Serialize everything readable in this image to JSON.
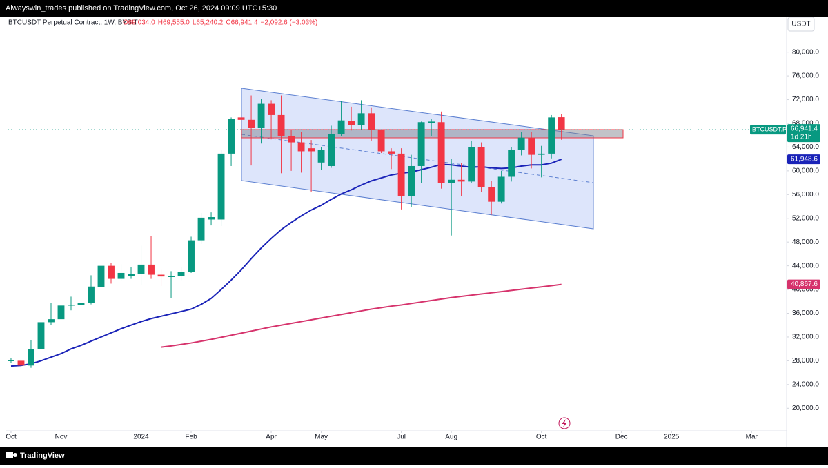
{
  "header": "Alwayswin_trades published on TradingView.com, Oct 26, 2024 09:09 UTC+5:30",
  "footer": "TradingView",
  "chart_data": {
    "type": "candlestick",
    "title": "BTCUSDT Perpetual Contract, 1W, BYBIT",
    "legend_values": [
      "O69,034.0",
      "H69,555.0",
      "L65,240.2",
      "C66,941.4",
      "−2,092.6 (−3.03%)"
    ],
    "currency": "USDT",
    "symbol": "BTCUSDT.P",
    "countdown": "1d 21h",
    "last_close_label": "66,941.4",
    "up_color": "#089981",
    "down_color": "#f23645",
    "open": [
      27950,
      28000,
      27200,
      30000,
      34500,
      35000,
      37300,
      37400,
      37800,
      40400,
      44000,
      41800,
      42300,
      42600,
      44200,
      42500,
      42100,
      42300,
      43000,
      48300,
      51800,
      51800,
      62900,
      69000,
      68600,
      67300,
      71300,
      69400,
      65800,
      64800,
      63800,
      61400,
      60800,
      66200,
      68400,
      67700,
      69700,
      66900,
      63300,
      62900,
      55700,
      60800,
      68100,
      68200,
      58000,
      58500,
      58200,
      64000,
      57200,
      54800,
      59000,
      63500,
      65600,
      62700,
      62900,
      69034
    ],
    "high": [
      28400,
      28300,
      31500,
      35800,
      37800,
      38400,
      38800,
      39000,
      42400,
      44800,
      44500,
      44300,
      43800,
      47400,
      49000,
      43300,
      43100,
      43800,
      48900,
      52900,
      53000,
      63600,
      69000,
      70000,
      72700,
      72100,
      71900,
      72700,
      67000,
      66500,
      65200,
      64000,
      67600,
      71800,
      70800,
      71900,
      70700,
      67000,
      63800,
      63800,
      62700,
      68300,
      68800,
      70000,
      62000,
      61300,
      65100,
      64800,
      58300,
      60000,
      64000,
      66500,
      66500,
      64200,
      69400,
      69555
    ],
    "low": [
      27700,
      26600,
      26800,
      29800,
      34000,
      34800,
      36500,
      36300,
      37500,
      40000,
      41000,
      41500,
      41800,
      40700,
      41800,
      40600,
      38600,
      41600,
      42800,
      47700,
      50800,
      50700,
      60800,
      62300,
      60900,
      64600,
      65300,
      59600,
      60000,
      59700,
      56500,
      60200,
      60500,
      65800,
      66800,
      66900,
      65000,
      63000,
      60300,
      53500,
      53900,
      58000,
      65900,
      57000,
      49100,
      55700,
      57900,
      56500,
      52600,
      54500,
      58200,
      62600,
      60400,
      58900,
      62100,
      65240.2
    ],
    "close": [
      28050,
      27200,
      30000,
      34500,
      35000,
      37300,
      37400,
      37800,
      40500,
      44000,
      41800,
      42800,
      42600,
      44200,
      42500,
      42200,
      42300,
      43000,
      48300,
      52100,
      52200,
      62900,
      68800,
      68600,
      67300,
      71300,
      69400,
      65800,
      64800,
      63300,
      63300,
      63500,
      66200,
      68500,
      67700,
      69700,
      66900,
      63300,
      62900,
      55700,
      60800,
      68200,
      68300,
      57900,
      58500,
      58200,
      64000,
      57200,
      54800,
      59000,
      63500,
      65600,
      62700,
      62900,
      69000,
      66941.4
    ],
    "series": [
      {
        "color": "#1a23b8",
        "last_label": "61,948.6",
        "values": [
          27100,
          27200,
          27500,
          28000,
          28600,
          29200,
          30000,
          30600,
          31300,
          32000,
          32700,
          33400,
          34000,
          34600,
          35100,
          35500,
          35900,
          36300,
          36700,
          37500,
          38500,
          40000,
          41600,
          43300,
          45200,
          47000,
          48600,
          50100,
          51300,
          52400,
          53400,
          54200,
          55200,
          56100,
          56800,
          57600,
          58300,
          58800,
          59300,
          59600,
          59800,
          60200,
          60600,
          61100,
          61000,
          60800,
          60600,
          60700,
          60500,
          60400,
          60500,
          60800,
          61000,
          61000,
          61300,
          61948.6
        ]
      },
      {
        "color": "#d6336c",
        "last_label": "40,867.6",
        "values": [
          null,
          null,
          null,
          null,
          null,
          null,
          null,
          null,
          null,
          null,
          null,
          null,
          null,
          null,
          null,
          30300,
          30500,
          30750,
          31000,
          31300,
          31600,
          31950,
          32300,
          32650,
          33000,
          33350,
          33700,
          34000,
          34300,
          34600,
          34900,
          35200,
          35500,
          35800,
          36100,
          36400,
          36700,
          36950,
          37200,
          37400,
          37650,
          37900,
          38150,
          38400,
          38650,
          38850,
          39050,
          39250,
          39450,
          39650,
          39850,
          40050,
          40250,
          40450,
          40650,
          40867.6
        ]
      }
    ],
    "xlim": [
      -0.55,
      77.5
    ],
    "xticks": [
      {
        "value": 0,
        "label": "Oct"
      },
      {
        "value": 5,
        "label": "Nov"
      },
      {
        "value": 13,
        "label": "2024"
      },
      {
        "value": 18,
        "label": "Feb"
      },
      {
        "value": 26,
        "label": "Apr"
      },
      {
        "value": 31,
        "label": "May"
      },
      {
        "value": 39,
        "label": "Jul"
      },
      {
        "value": 44,
        "label": "Aug"
      },
      {
        "value": 53,
        "label": "Oct"
      },
      {
        "value": 61,
        "label": "Dec"
      },
      {
        "value": 66,
        "label": "2025"
      },
      {
        "value": 74,
        "label": "Mar"
      }
    ],
    "ylim": [
      16200,
      86000
    ],
    "yticks": [
      {
        "value": 20000,
        "label": "20,000.0"
      },
      {
        "value": 24000,
        "label": "24,000.0"
      },
      {
        "value": 28000,
        "label": "28,000.0"
      },
      {
        "value": 32000,
        "label": "32,000.0"
      },
      {
        "value": 36000,
        "label": "36,000.0"
      },
      {
        "value": 40000,
        "label": "40,000.0"
      },
      {
        "value": 44000,
        "label": "44,000.0"
      },
      {
        "value": 48000,
        "label": "48,000.0"
      },
      {
        "value": 52000,
        "label": "52,000.0"
      },
      {
        "value": 56000,
        "label": "56,000.0"
      },
      {
        "value": 60000,
        "label": "60,000.0"
      },
      {
        "value": 64000,
        "label": "64,000.0"
      },
      {
        "value": 68000,
        "label": "68,000.0"
      },
      {
        "value": 72000,
        "label": "72,000.0"
      },
      {
        "value": 76000,
        "label": "76,000.0"
      },
      {
        "value": 80000,
        "label": "80,000.0"
      }
    ],
    "grid": false
  }
}
